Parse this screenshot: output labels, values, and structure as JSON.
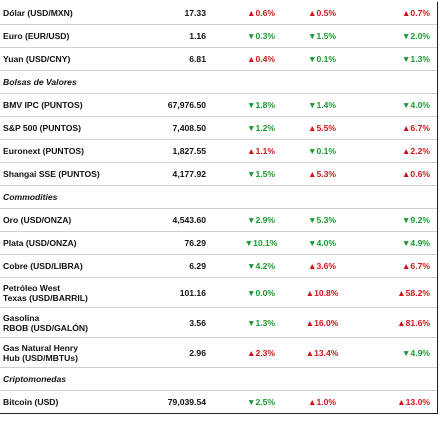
{
  "rows": [
    {
      "name": [
        "Dólar (USD/MXN)"
      ],
      "price": "17.33",
      "changes": [
        "▲0.6%",
        "▲0.5%",
        "▲0.7%"
      ]
    },
    {
      "name": [
        "Euro (EUR/USD)"
      ],
      "price": "1.16",
      "changes": [
        "▼0.3%",
        "▼1.5%",
        "▼2.0%"
      ]
    },
    {
      "name": [
        "Yuan (USD/CNY)"
      ],
      "price": "6.81",
      "changes": [
        "▲0.4%",
        "▼0.1%",
        "▼1.3%"
      ]
    },
    {
      "section": "Bolsas de Valores"
    },
    {
      "name": [
        "BMV IPC (PUNTOS)"
      ],
      "price": "67,976.50",
      "changes": [
        "▼1.8%",
        "▼1.4%",
        "▼4.0%"
      ]
    },
    {
      "name": [
        "S&P 500 (PUNTOS)"
      ],
      "price": "7,408.50",
      "changes": [
        "▼1.2%",
        "▲5.5%",
        "▲6.7%"
      ]
    },
    {
      "name": [
        "Euronext (PUNTOS)"
      ],
      "price": "1,827.55",
      "changes": [
        "▲1.1%",
        "▼0.1%",
        "▲2.2%"
      ]
    },
    {
      "name": [
        "Shangai SSE (PUNTOS)"
      ],
      "price": "4,177.92",
      "changes": [
        "▼1.5%",
        "▲5.3%",
        "▲0.6%"
      ]
    },
    {
      "section": "Commodities"
    },
    {
      "name": [
        "Oro (USD/ONZA)"
      ],
      "price": "4,543.60",
      "changes": [
        "▼2.9%",
        "▼5.3%",
        "▼9.2%"
      ]
    },
    {
      "name": [
        "Plata (USD/ONZA)"
      ],
      "price": "76.29",
      "changes": [
        "▼10.1%",
        "▼4.0%",
        "▼4.9%"
      ]
    },
    {
      "name": [
        "Cobre (USD/LIBRA)"
      ],
      "price": "6.29",
      "changes": [
        "▼4.2%",
        "▲3.6%",
        "▲6.7%"
      ]
    },
    {
      "name": [
        "Petróleo West",
        "Texas (USD/BARRIL)"
      ],
      "price": "101.16",
      "changes": [
        "▼0.0%",
        "▲10.8%",
        "▲58.2%"
      ]
    },
    {
      "name": [
        "Gasolina",
        "RBOB (USD/GALÓN)"
      ],
      "price": "3.56",
      "changes": [
        "▼1.3%",
        "▲16.0%",
        "▲81.6%"
      ]
    },
    {
      "name": [
        "Gas Natural Henry",
        "Hub (USD/MBTUs)"
      ],
      "price": "2.96",
      "changes": [
        "▲2.3%",
        "▲13.4%",
        "▼4.9%"
      ]
    },
    {
      "section": "Criptomonedas"
    },
    {
      "name": [
        "Bitcoin (USD)"
      ],
      "price": "79,039.54",
      "changes": [
        "▼2.5%",
        "▲1.0%",
        "▲13.0%"
      ]
    }
  ]
}
